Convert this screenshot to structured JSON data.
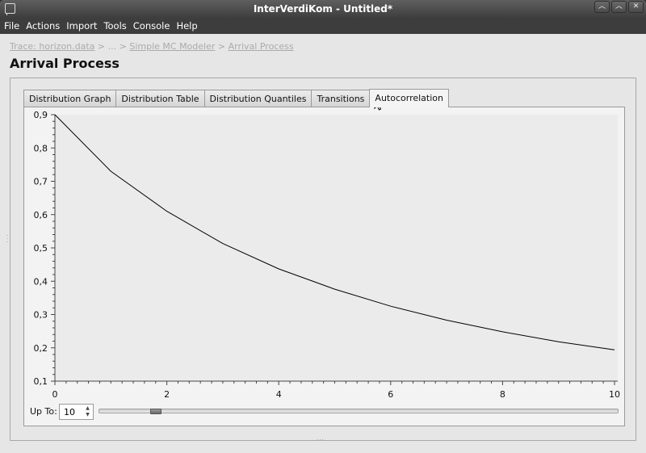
{
  "window": {
    "title": "InterVerdiKom - Untitled*",
    "controls": [
      "︿",
      "︿",
      "✕"
    ]
  },
  "menu": [
    "File",
    "Actions",
    "Import",
    "Tools",
    "Console",
    "Help"
  ],
  "breadcrumb": {
    "items": [
      "Trace: horizon.data",
      " > ... > ",
      "Simple MC Modeler",
      " > ",
      "Arrival Process"
    ]
  },
  "page_title": "Arrival Process",
  "tabs": [
    {
      "label": "Distribution Graph"
    },
    {
      "label": "Distribution Table"
    },
    {
      "label": "Distribution Quantiles"
    },
    {
      "label": "Transitions"
    },
    {
      "label": "Autocorrelation",
      "active": true
    }
  ],
  "controls": {
    "upto_label": "Up To:",
    "upto_value": "10",
    "slider_fraction": 0.1
  },
  "chart_data": {
    "type": "line",
    "x": [
      0,
      1,
      2,
      3,
      4,
      5,
      6,
      7,
      8,
      9,
      10
    ],
    "series": [
      {
        "values": [
          0.9,
          0.73,
          0.61,
          0.513,
          0.437,
          0.376,
          0.325,
          0.283,
          0.248,
          0.218,
          0.194
        ]
      }
    ],
    "xlim": [
      0,
      10
    ],
    "ylim": [
      0.1,
      0.9
    ],
    "x_ticks": [
      "0",
      "2",
      "4",
      "6",
      "8",
      "10"
    ],
    "y_ticks": [
      "0,1",
      "0,2",
      "0,3",
      "0,4",
      "0,5",
      "0,6",
      "0,7",
      "0,8",
      "0,9"
    ],
    "grid": false,
    "colors": {
      "plot_bg": "#ebebeb",
      "line": "#000000"
    }
  }
}
